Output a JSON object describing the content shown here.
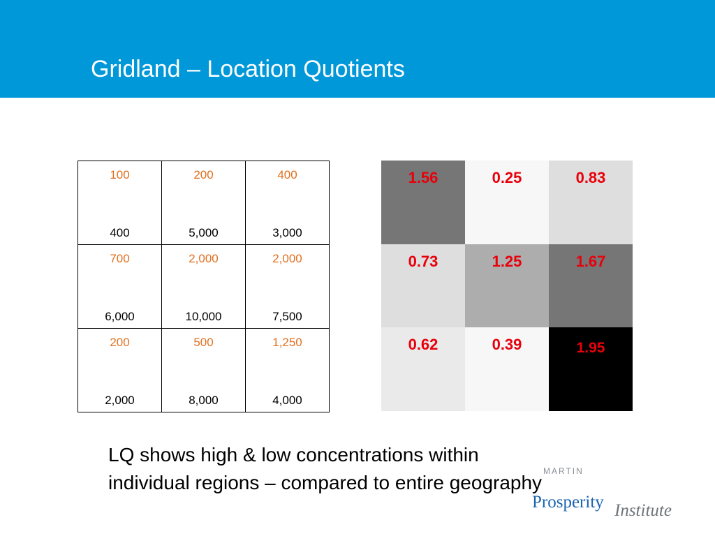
{
  "header": {
    "title": "Gridland – Location Quotients",
    "background": "#0098d8"
  },
  "grid_table": {
    "rows": [
      [
        {
          "top": "100",
          "bottom": "400"
        },
        {
          "top": "200",
          "bottom": "5,000"
        },
        {
          "top": "400",
          "bottom": "3,000"
        }
      ],
      [
        {
          "top": "700",
          "bottom": "6,000"
        },
        {
          "top": "2,000",
          "bottom": "10,000"
        },
        {
          "top": "2,000",
          "bottom": "7,500"
        }
      ],
      [
        {
          "top": "200",
          "bottom": "2,000"
        },
        {
          "top": "500",
          "bottom": "8,000"
        },
        {
          "top": "1,250",
          "bottom": "4,000"
        }
      ]
    ],
    "top_value_color": "#e07020",
    "bottom_value_color": "#000000"
  },
  "lq_grid": {
    "value_color": "#e8000b",
    "rows": [
      [
        {
          "value": "1.56",
          "shade": "#767676"
        },
        {
          "value": "0.25",
          "shade": "#f7f7f7"
        },
        {
          "value": "0.83",
          "shade": "#dedede"
        }
      ],
      [
        {
          "value": "0.73",
          "shade": "#dedede"
        },
        {
          "value": "1.25",
          "shade": "#adadad"
        },
        {
          "value": "1.67",
          "shade": "#767676"
        }
      ],
      [
        {
          "value": "0.62",
          "shade": "#eaeaea"
        },
        {
          "value": "0.39",
          "shade": "#f7f7f7"
        },
        {
          "value": "1.95",
          "shade": "#000000"
        }
      ]
    ]
  },
  "caption": {
    "line1": "LQ shows high & low concentrations within",
    "line2": "individual regions – compared to entire geography"
  },
  "logo": {
    "martin": "MARTIN",
    "prosperity": "Prosperity",
    "institute": "Institute"
  }
}
